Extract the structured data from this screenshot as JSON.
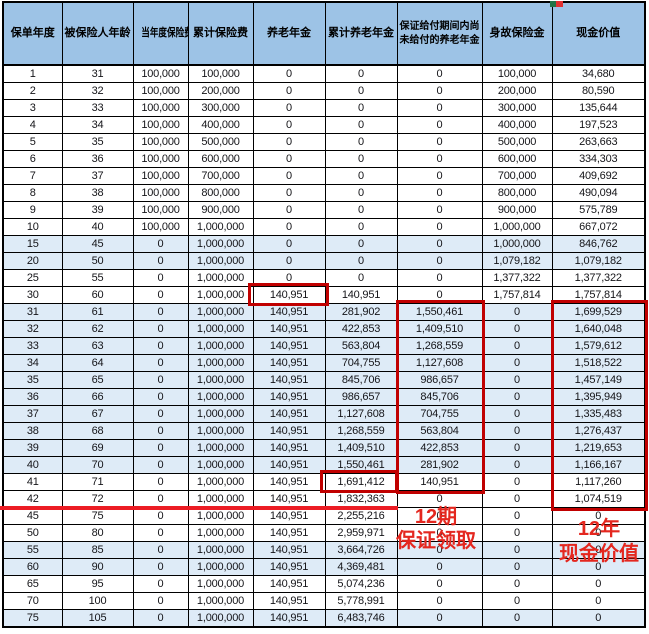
{
  "table": {
    "headers": [
      "保单年度",
      "被保险人年龄",
      "当年度保险费",
      "累计保险费",
      "养老年金",
      "累计养老年金",
      "保证给付期间内尚未给付的养老年金",
      "身故保险金",
      "现金价值"
    ],
    "rows": [
      [
        "1",
        "31",
        "100,000",
        "100,000",
        "0",
        "0",
        "0",
        "100,000",
        "34,680"
      ],
      [
        "2",
        "32",
        "100,000",
        "200,000",
        "0",
        "0",
        "0",
        "200,000",
        "80,590"
      ],
      [
        "3",
        "33",
        "100,000",
        "300,000",
        "0",
        "0",
        "0",
        "300,000",
        "135,644"
      ],
      [
        "4",
        "34",
        "100,000",
        "400,000",
        "0",
        "0",
        "0",
        "400,000",
        "197,523"
      ],
      [
        "5",
        "35",
        "100,000",
        "500,000",
        "0",
        "0",
        "0",
        "500,000",
        "263,663"
      ],
      [
        "6",
        "36",
        "100,000",
        "600,000",
        "0",
        "0",
        "0",
        "600,000",
        "334,303"
      ],
      [
        "7",
        "37",
        "100,000",
        "700,000",
        "0",
        "0",
        "0",
        "700,000",
        "409,692"
      ],
      [
        "8",
        "38",
        "100,000",
        "800,000",
        "0",
        "0",
        "0",
        "800,000",
        "490,094"
      ],
      [
        "9",
        "39",
        "100,000",
        "900,000",
        "0",
        "0",
        "0",
        "900,000",
        "575,789"
      ],
      [
        "10",
        "40",
        "100,000",
        "1,000,000",
        "0",
        "0",
        "0",
        "1,000,000",
        "667,072"
      ],
      [
        "15",
        "45",
        "0",
        "1,000,000",
        "0",
        "0",
        "0",
        "1,000,000",
        "846,762"
      ],
      [
        "20",
        "50",
        "0",
        "1,000,000",
        "0",
        "0",
        "0",
        "1,079,182",
        "1,079,182"
      ],
      [
        "25",
        "55",
        "0",
        "1,000,000",
        "0",
        "0",
        "0",
        "1,377,322",
        "1,377,322"
      ],
      [
        "30",
        "60",
        "0",
        "1,000,000",
        "140,951",
        "140,951",
        "0",
        "1,757,814",
        "1,757,814"
      ],
      [
        "31",
        "61",
        "0",
        "1,000,000",
        "140,951",
        "281,902",
        "1,550,461",
        "0",
        "1,699,529"
      ],
      [
        "32",
        "62",
        "0",
        "1,000,000",
        "140,951",
        "422,853",
        "1,409,510",
        "0",
        "1,640,048"
      ],
      [
        "33",
        "63",
        "0",
        "1,000,000",
        "140,951",
        "563,804",
        "1,268,559",
        "0",
        "1,579,612"
      ],
      [
        "34",
        "64",
        "0",
        "1,000,000",
        "140,951",
        "704,755",
        "1,127,608",
        "0",
        "1,518,522"
      ],
      [
        "35",
        "65",
        "0",
        "1,000,000",
        "140,951",
        "845,706",
        "986,657",
        "0",
        "1,457,149"
      ],
      [
        "36",
        "66",
        "0",
        "1,000,000",
        "140,951",
        "986,657",
        "845,706",
        "0",
        "1,395,949"
      ],
      [
        "37",
        "67",
        "0",
        "1,000,000",
        "140,951",
        "1,127,608",
        "704,755",
        "0",
        "1,335,483"
      ],
      [
        "38",
        "68",
        "0",
        "1,000,000",
        "140,951",
        "1,268,559",
        "563,804",
        "0",
        "1,276,437"
      ],
      [
        "39",
        "69",
        "0",
        "1,000,000",
        "140,951",
        "1,409,510",
        "422,853",
        "0",
        "1,219,653"
      ],
      [
        "40",
        "70",
        "0",
        "1,000,000",
        "140,951",
        "1,550,461",
        "281,902",
        "0",
        "1,166,167"
      ],
      [
        "41",
        "71",
        "0",
        "1,000,000",
        "140,951",
        "1,691,412",
        "140,951",
        "0",
        "1,117,260"
      ],
      [
        "42",
        "72",
        "0",
        "1,000,000",
        "140,951",
        "1,832,363",
        "0",
        "0",
        "1,074,519"
      ],
      [
        "45",
        "75",
        "0",
        "1,000,000",
        "140,951",
        "2,255,216",
        "0",
        "0",
        "0"
      ],
      [
        "50",
        "80",
        "0",
        "1,000,000",
        "140,951",
        "2,959,971",
        "0",
        "0",
        "0"
      ],
      [
        "55",
        "85",
        "0",
        "1,000,000",
        "140,951",
        "3,664,726",
        "0",
        "0",
        "0"
      ],
      [
        "60",
        "90",
        "0",
        "1,000,000",
        "140,951",
        "4,369,481",
        "0",
        "0",
        "0"
      ],
      [
        "65",
        "95",
        "0",
        "1,000,000",
        "140,951",
        "5,074,236",
        "0",
        "0",
        "0"
      ],
      [
        "70",
        "100",
        "0",
        "1,000,000",
        "140,951",
        "5,778,991",
        "0",
        "0",
        "0"
      ],
      [
        "75",
        "105",
        "0",
        "1,000,000",
        "140,951",
        "6,483,746",
        "0",
        "0",
        "0"
      ]
    ],
    "highlight_row_indexes": [
      10,
      11,
      14,
      15,
      16,
      17,
      18,
      19,
      20,
      21,
      22,
      23,
      28,
      29,
      32
    ]
  },
  "annotations": {
    "guaranteed": {
      "line1": "12期",
      "line2": "保证领取"
    },
    "cash": {
      "line1": "12年",
      "line2": "现金价值"
    }
  },
  "colors": {
    "header_bg": "#9dc3e6",
    "highlight_row_bg": "#deebf7",
    "annotation_box_red": "#c00000",
    "annotation_text_red": "#e4271f",
    "underline_red": "#ec1c24"
  }
}
